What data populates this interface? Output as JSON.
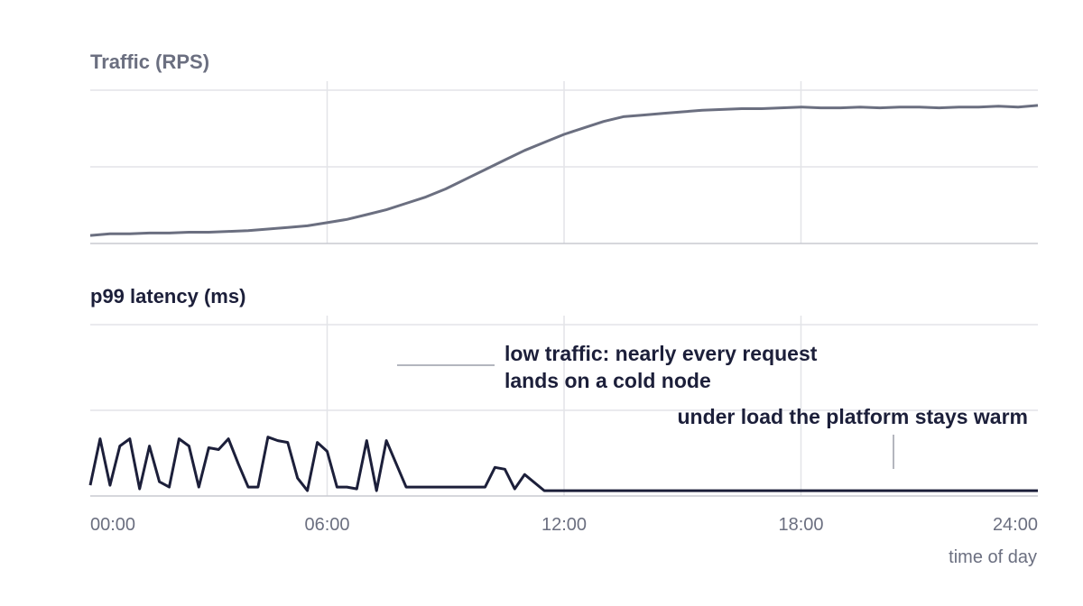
{
  "chart_data": [
    {
      "type": "line",
      "title": "Traffic (RPS)",
      "xlabel": "time of day",
      "ylabel": "",
      "x_ticks": [
        "00:00",
        "06:00",
        "12:00",
        "18:00",
        "24:00"
      ],
      "xlim": [
        0,
        24
      ],
      "ylim": [
        0,
        100
      ],
      "grid": true,
      "color": "#6b6f80",
      "series": [
        {
          "x": [
            0,
            0.5,
            1,
            1.5,
            2,
            2.5,
            3,
            3.5,
            4,
            4.5,
            5,
            5.5,
            6,
            6.5,
            7,
            7.5,
            8,
            8.5,
            9,
            9.5,
            10,
            10.5,
            11,
            11.5,
            12,
            12.5,
            13,
            13.5,
            14,
            14.5,
            15,
            15.5,
            16,
            16.5,
            17,
            17.5,
            18,
            18.5,
            19,
            19.5,
            20,
            20.5,
            21,
            21.5,
            22,
            22.5,
            23,
            23.5,
            24
          ],
          "values": [
            5,
            6,
            6,
            6.5,
            6.5,
            7,
            7,
            7.5,
            8,
            9,
            10,
            11,
            13,
            15,
            18,
            21,
            25,
            29,
            34,
            40,
            46,
            52,
            58,
            63,
            68,
            72,
            76,
            79,
            80,
            81,
            82,
            83,
            83.5,
            84,
            84,
            84.5,
            85,
            84.5,
            84.5,
            85,
            84.5,
            85,
            85,
            84.5,
            85,
            85,
            85.5,
            85,
            86
          ]
        }
      ]
    },
    {
      "type": "line",
      "title": "p99 latency (ms)",
      "xlabel": "time of day",
      "ylabel": "",
      "x_ticks": [
        "00:00",
        "06:00",
        "12:00",
        "18:00",
        "24:00"
      ],
      "xlim": [
        0,
        24
      ],
      "ylim": [
        0,
        100
      ],
      "grid": true,
      "color": "#1c1f3a",
      "series": [
        {
          "x": [
            0,
            0.25,
            0.5,
            0.75,
            1,
            1.25,
            1.5,
            1.75,
            2,
            2.25,
            2.5,
            2.75,
            3,
            3.25,
            3.5,
            3.75,
            4,
            4.25,
            4.5,
            4.75,
            5,
            5.25,
            5.5,
            5.75,
            6,
            6.25,
            6.5,
            6.75,
            7,
            7.25,
            7.5,
            8,
            8.5,
            9,
            9.5,
            10,
            10.25,
            10.5,
            10.75,
            11,
            11.5,
            12,
            12.5,
            13,
            13.5,
            14,
            14.5,
            15,
            15.5,
            16,
            16.5,
            17,
            17.5,
            18,
            18.5,
            19,
            19.5,
            20,
            20.5,
            21,
            21.5,
            22,
            22.5,
            23,
            23.5,
            24
          ],
          "values": [
            6,
            32,
            6,
            28,
            32,
            4,
            28,
            8,
            5,
            32,
            28,
            5,
            27,
            26,
            32,
            18,
            5,
            5,
            33,
            31,
            30,
            10,
            3,
            30,
            25,
            5,
            5,
            4,
            31,
            3,
            31,
            5,
            5,
            5,
            5,
            5,
            16,
            15,
            4,
            12,
            3,
            3,
            3,
            3,
            3,
            3,
            3,
            3,
            3,
            3,
            3,
            3,
            3,
            3,
            3,
            3,
            3,
            3,
            3,
            3,
            3,
            3,
            3,
            3,
            3,
            3
          ]
        }
      ]
    }
  ],
  "annotations": {
    "cold_line1": "low traffic: nearly every request",
    "cold_line2": "lands on a cold node",
    "warm": "under load the platform stays warm"
  }
}
